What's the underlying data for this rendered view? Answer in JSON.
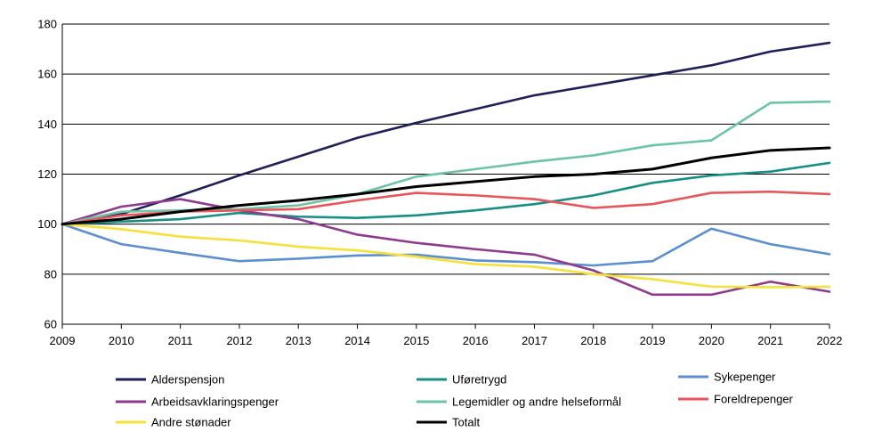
{
  "chart_data": {
    "type": "line",
    "title": "",
    "xlabel": "",
    "ylabel": "",
    "x": [
      2009,
      2010,
      2011,
      2012,
      2013,
      2014,
      2015,
      2016,
      2017,
      2018,
      2019,
      2020,
      2021,
      2022
    ],
    "xtick_labels": [
      "2009",
      "2010",
      "2011",
      "2012",
      "2013",
      "2014",
      "2015",
      "2016",
      "2017",
      "2018",
      "2019",
      "2020",
      "2021",
      "2022"
    ],
    "ylim": [
      60,
      180
    ],
    "yticks": [
      60,
      80,
      100,
      120,
      140,
      160,
      180
    ],
    "ytick_labels": [
      "60",
      "80",
      "100",
      "120",
      "140",
      "160",
      "180"
    ],
    "grid": "horizontal",
    "legend_position": "bottom",
    "series": [
      {
        "name": "Alderspensjon",
        "color": "#1f1f5a",
        "values": [
          100,
          104,
          111.5,
          119.5,
          127,
          134.5,
          140.5,
          146,
          151.5,
          155.5,
          159.5,
          163.5,
          169,
          172.5
        ]
      },
      {
        "name": "Uføretrygd",
        "color": "#178f87",
        "values": [
          100,
          101,
          102,
          104.5,
          103,
          102.5,
          103.5,
          105.5,
          108,
          111.5,
          116.5,
          119.5,
          121,
          124.5
        ]
      },
      {
        "name": "Sykepenger",
        "color": "#5b8fcf",
        "values": [
          100,
          92,
          88.5,
          85.2,
          86.2,
          87.5,
          87.8,
          85.5,
          84.8,
          83.5,
          85.2,
          98.2,
          92,
          88
        ]
      },
      {
        "name": "Arbeidsavklaringspenger",
        "color": "#8e3a8e",
        "values": [
          100,
          107,
          110,
          105.5,
          102,
          95.8,
          92.5,
          90,
          87.8,
          81.5,
          71.8,
          71.8,
          77,
          73
        ]
      },
      {
        "name": "Legemidler og andre helseformål",
        "color": "#6cc4a4",
        "values": [
          100,
          105,
          105.5,
          106,
          107.5,
          112,
          119,
          122,
          125,
          127.5,
          131.5,
          133.5,
          148.5,
          149
        ]
      },
      {
        "name": "Foreldrepenger",
        "color": "#e8565c",
        "values": [
          100,
          103.5,
          105,
          105.5,
          106,
          109.5,
          112.5,
          111.5,
          110,
          106.5,
          108,
          112.5,
          113,
          112
        ]
      },
      {
        "name": "Andre stønader",
        "color": "#f5e13a",
        "values": [
          100,
          98,
          95,
          93.5,
          91,
          89.5,
          87,
          84,
          83,
          80,
          78,
          75,
          74.8,
          75
        ]
      },
      {
        "name": "Totalt",
        "color": "#000000",
        "values": [
          100,
          102,
          105,
          107.5,
          109.5,
          112,
          115,
          117,
          119,
          120,
          122,
          126.5,
          129.5,
          130.5
        ]
      }
    ],
    "legend": [
      [
        "Alderspensjon",
        "Uføretrygd",
        "Sykepenger"
      ],
      [
        "Arbeidsavklaringspenger",
        "Legemidler og andre helseformål",
        "Foreldrepenger"
      ],
      [
        "Andre stønader",
        "Totalt"
      ]
    ]
  }
}
